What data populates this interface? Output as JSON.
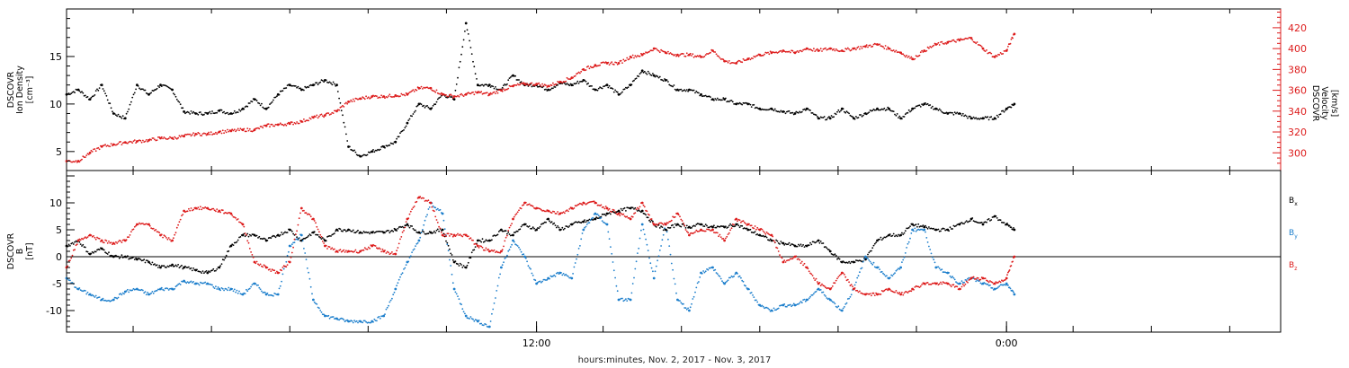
{
  "colors": {
    "black": "#000000",
    "red": "#dd1c1c",
    "blue": "#1d7fcc"
  },
  "chart_data": [
    {
      "type": "scatter",
      "panel": "top",
      "xlabel": "hours:minutes, Nov.  2, 2017 - Nov.  3, 2017",
      "xlim": [
        0,
        31
      ],
      "x_tick_labels": [
        {
          "x": 12,
          "label": "12:00"
        },
        {
          "x": 24,
          "label": "0:00"
        }
      ],
      "x_minor_ticks": [
        1.7,
        3.7,
        5.7,
        7.7,
        9.7,
        12,
        13.7,
        15.7,
        17.7,
        19.7,
        21.7,
        24,
        25.7,
        27.7,
        29.7
      ],
      "left_axis": {
        "label_lines": [
          "DSCOVR",
          "Ion Density"
        ],
        "unit": "[cm⁻³]",
        "ylim": [
          3,
          20
        ],
        "ticks": [
          5,
          10,
          15
        ],
        "color": "#000000"
      },
      "right_axis": {
        "label_lines": [
          "DSCOVR",
          "Velocity"
        ],
        "unit": "[km/s]",
        "ylim": [
          283,
          438
        ],
        "ticks": [
          300,
          320,
          340,
          360,
          380,
          400,
          420
        ],
        "color": "#dd1c1c"
      },
      "series": [
        {
          "axis": "left",
          "color": "#000000",
          "x": [
            0,
            0.3,
            0.6,
            0.9,
            1.2,
            1.5,
            1.8,
            2.1,
            2.4,
            2.7,
            3.0,
            3.3,
            3.6,
            3.9,
            4.2,
            4.5,
            4.8,
            5.1,
            5.4,
            5.7,
            6.0,
            6.3,
            6.6,
            6.9,
            7.2,
            7.5,
            7.8,
            8.1,
            8.4,
            8.7,
            9.0,
            9.3,
            9.6,
            9.9,
            10.2,
            10.5,
            10.8,
            11.1,
            11.4,
            11.7,
            12.0,
            12.3,
            12.6,
            12.9,
            13.2,
            13.5,
            13.8,
            14.1,
            14.4,
            14.7,
            15.0,
            15.3,
            15.6,
            15.9,
            16.2,
            16.5,
            16.8,
            17.1,
            17.4,
            17.7,
            18.0,
            18.3,
            18.6,
            18.9,
            19.2,
            19.5,
            19.8,
            20.1,
            20.4,
            20.7,
            21.0,
            21.3,
            21.6,
            21.9,
            22.2,
            22.5,
            22.8,
            23.1,
            23.4,
            23.7,
            24.0,
            24.2
          ],
          "y": [
            11,
            11.5,
            10.5,
            12,
            9,
            8.5,
            12,
            11,
            12,
            11.5,
            9.2,
            9,
            9,
            9.3,
            9,
            9.5,
            10.5,
            9.5,
            11,
            12,
            11.5,
            12,
            12.5,
            12,
            5.5,
            4.5,
            5,
            5.5,
            6,
            8,
            10,
            9.5,
            11,
            10.5,
            18.5,
            12,
            12,
            11.5,
            13,
            12,
            12,
            11.5,
            12.2,
            12,
            12.5,
            11.5,
            12,
            11,
            12,
            13.5,
            13,
            12.5,
            11.5,
            11.5,
            11,
            10.5,
            10.5,
            10,
            10,
            9.5,
            9.5,
            9.2,
            9,
            9.5,
            8.5,
            8.5,
            9.5,
            8.5,
            9,
            9.5,
            9.5,
            8.5,
            9.5,
            10,
            9.5,
            9,
            9,
            8.5,
            8.5,
            8.5,
            9.5,
            10
          ]
        },
        {
          "axis": "right",
          "color": "#dd1c1c",
          "x": [
            0,
            0.3,
            0.6,
            0.9,
            1.2,
            1.5,
            1.8,
            2.1,
            2.4,
            2.7,
            3.0,
            3.3,
            3.6,
            3.9,
            4.2,
            4.5,
            4.8,
            5.1,
            5.4,
            5.7,
            6.0,
            6.3,
            6.6,
            6.9,
            7.2,
            7.5,
            7.8,
            8.1,
            8.4,
            8.7,
            9.0,
            9.3,
            9.6,
            9.9,
            10.2,
            10.5,
            10.8,
            11.1,
            11.4,
            11.7,
            12.0,
            12.3,
            12.6,
            12.9,
            13.2,
            13.5,
            13.8,
            14.1,
            14.4,
            14.7,
            15.0,
            15.3,
            15.6,
            15.9,
            16.2,
            16.5,
            16.8,
            17.1,
            17.4,
            17.7,
            18.0,
            18.3,
            18.6,
            18.9,
            19.2,
            19.5,
            19.8,
            20.1,
            20.4,
            20.7,
            21.0,
            21.3,
            21.6,
            21.9,
            22.2,
            22.5,
            22.8,
            23.1,
            23.4,
            23.7,
            24.0,
            24.2
          ],
          "y": [
            292,
            292,
            300,
            306,
            308,
            310,
            311,
            312,
            314,
            314,
            316,
            318,
            318,
            320,
            321,
            322,
            322,
            326,
            327,
            328,
            330,
            334,
            336,
            340,
            349,
            352,
            354,
            354,
            355,
            356,
            362,
            362,
            356,
            354,
            356,
            358,
            356,
            360,
            364,
            366,
            366,
            364,
            368,
            372,
            380,
            384,
            386,
            386,
            392,
            394,
            400,
            396,
            394,
            394,
            392,
            398,
            388,
            386,
            390,
            394,
            396,
            398,
            396,
            400,
            398,
            400,
            398,
            400,
            402,
            404,
            400,
            396,
            390,
            398,
            404,
            406,
            408,
            410,
            400,
            392,
            398,
            414
          ]
        }
      ]
    },
    {
      "type": "scatter",
      "panel": "bottom",
      "xlim": [
        0,
        31
      ],
      "left_axis": {
        "label_lines": [
          "DSCOVR",
          "B"
        ],
        "unit": "[nT]",
        "ylim": [
          -14,
          16
        ],
        "ticks": [
          -10,
          -5,
          0,
          5,
          10
        ],
        "color": "#000000"
      },
      "zero_line": true,
      "series": [
        {
          "name": "Bx",
          "color": "#000000",
          "x": [
            0,
            0.3,
            0.6,
            0.9,
            1.2,
            1.5,
            1.8,
            2.1,
            2.4,
            2.7,
            3.0,
            3.3,
            3.6,
            3.9,
            4.2,
            4.5,
            4.8,
            5.1,
            5.4,
            5.7,
            6.0,
            6.3,
            6.6,
            6.9,
            7.2,
            7.5,
            7.8,
            8.1,
            8.4,
            8.7,
            9.0,
            9.3,
            9.6,
            9.9,
            10.2,
            10.5,
            10.8,
            11.1,
            11.4,
            11.7,
            12.0,
            12.3,
            12.6,
            12.9,
            13.2,
            13.5,
            13.8,
            14.1,
            14.4,
            14.7,
            15.0,
            15.3,
            15.6,
            15.9,
            16.2,
            16.5,
            16.8,
            17.1,
            17.4,
            17.7,
            18.0,
            18.3,
            18.6,
            18.9,
            19.2,
            19.5,
            19.8,
            20.1,
            20.4,
            20.7,
            21.0,
            21.3,
            21.6,
            21.9,
            22.2,
            22.5,
            22.8,
            23.1,
            23.4,
            23.7,
            24.0,
            24.2
          ],
          "y": [
            2,
            3,
            0.5,
            1.5,
            0,
            0,
            -0.5,
            -1,
            -2,
            -1.5,
            -2,
            -2.5,
            -3,
            -2,
            2,
            4,
            4,
            3,
            4,
            5,
            3,
            4.5,
            3,
            5,
            5,
            4.5,
            4.5,
            4.5,
            5,
            6,
            4.5,
            4.5,
            5,
            -1,
            -2,
            3,
            3,
            5,
            4,
            6,
            5,
            7,
            5,
            6,
            6.5,
            7,
            8,
            8.5,
            9,
            8.5,
            6,
            5,
            6,
            5.5,
            6,
            5.5,
            5.5,
            6,
            5,
            4,
            3,
            2.5,
            2,
            2,
            3,
            1,
            -1,
            -1,
            -0.5,
            3,
            4,
            4,
            6,
            5.5,
            5,
            5,
            6,
            7,
            6,
            7.5,
            6,
            5
          ]
        },
        {
          "name": "By",
          "color": "#1d7fcc",
          "x": [
            0,
            0.3,
            0.6,
            0.9,
            1.2,
            1.5,
            1.8,
            2.1,
            2.4,
            2.7,
            3.0,
            3.3,
            3.6,
            3.9,
            4.2,
            4.5,
            4.8,
            5.1,
            5.4,
            5.7,
            6.0,
            6.3,
            6.6,
            6.9,
            7.2,
            7.5,
            7.8,
            8.1,
            8.4,
            8.7,
            9.0,
            9.3,
            9.6,
            9.9,
            10.2,
            10.5,
            10.8,
            11.1,
            11.4,
            11.7,
            12.0,
            12.3,
            12.6,
            12.9,
            13.2,
            13.5,
            13.8,
            14.1,
            14.4,
            14.7,
            15.0,
            15.3,
            15.6,
            15.9,
            16.2,
            16.5,
            16.8,
            17.1,
            17.4,
            17.7,
            18.0,
            18.3,
            18.6,
            18.9,
            19.2,
            19.5,
            19.8,
            20.1,
            20.4,
            20.7,
            21.0,
            21.3,
            21.6,
            21.9,
            22.2,
            22.5,
            22.8,
            23.1,
            23.4,
            23.7,
            24.0,
            24.2
          ],
          "y": [
            -4,
            -6,
            -7,
            -8,
            -8,
            -6.5,
            -6,
            -7,
            -6,
            -6,
            -4.5,
            -5,
            -5,
            -6,
            -6,
            -7,
            -5,
            -7,
            -7,
            2,
            4,
            -8,
            -11,
            -11.5,
            -12,
            -12,
            -12,
            -11,
            -6,
            -1,
            3,
            10,
            8,
            -6,
            -11,
            -12,
            -13,
            -2,
            3,
            0,
            -5,
            -4,
            -3,
            -4,
            5,
            8,
            6,
            -8,
            -8,
            6,
            -4,
            6,
            -8,
            -10,
            -3,
            -2,
            -5,
            -3,
            -6,
            -9,
            -10,
            -9,
            -9,
            -8,
            -6,
            -8,
            -10,
            -6,
            0,
            -2,
            -4,
            -2,
            5,
            5,
            -2,
            -3,
            -5,
            -4,
            -5,
            -6,
            -5,
            -7
          ]
        },
        {
          "name": "Bz",
          "color": "#dd1c1c",
          "x": [
            0,
            0.3,
            0.6,
            0.9,
            1.2,
            1.5,
            1.8,
            2.1,
            2.4,
            2.7,
            3.0,
            3.3,
            3.6,
            3.9,
            4.2,
            4.5,
            4.8,
            5.1,
            5.4,
            5.7,
            6.0,
            6.3,
            6.6,
            6.9,
            7.2,
            7.5,
            7.8,
            8.1,
            8.4,
            8.7,
            9.0,
            9.3,
            9.6,
            9.9,
            10.2,
            10.5,
            10.8,
            11.1,
            11.4,
            11.7,
            12.0,
            12.3,
            12.6,
            12.9,
            13.2,
            13.5,
            13.8,
            14.1,
            14.4,
            14.7,
            15.0,
            15.3,
            15.6,
            15.9,
            16.2,
            16.5,
            16.8,
            17.1,
            17.4,
            17.7,
            18.0,
            18.3,
            18.6,
            18.9,
            19.2,
            19.5,
            19.8,
            20.1,
            20.4,
            20.7,
            21.0,
            21.3,
            21.6,
            21.9,
            22.2,
            22.5,
            22.8,
            23.1,
            23.4,
            23.7,
            24.0,
            24.2
          ],
          "y": [
            -2,
            3,
            4,
            3,
            2.5,
            3,
            6,
            6,
            4,
            3,
            8.5,
            9,
            9,
            8.5,
            8,
            6,
            -1,
            -2,
            -3,
            -1,
            9,
            7,
            2,
            1,
            1,
            1,
            2,
            1,
            0.5,
            7,
            11,
            10,
            4,
            4,
            4,
            2,
            1,
            1,
            7,
            10,
            9,
            8.5,
            8,
            9,
            10,
            10,
            9,
            8,
            7,
            10,
            6,
            6,
            8,
            4,
            5,
            5,
            3,
            7,
            6,
            5,
            4,
            -1,
            0,
            -2,
            -5,
            -6,
            -3,
            -6,
            -7,
            -7,
            -6,
            -7,
            -6,
            -5,
            -5,
            -5,
            -6,
            -4,
            -4,
            -5,
            -4,
            0
          ]
        }
      ],
      "legend": {
        "placement": "right",
        "entries": [
          {
            "base": "B",
            "sub": "x",
            "color": "#000000"
          },
          {
            "base": "B",
            "sub": "y",
            "color": "#1d7fcc"
          },
          {
            "base": "B",
            "sub": "z",
            "color": "#dd1c1c"
          }
        ]
      }
    }
  ]
}
